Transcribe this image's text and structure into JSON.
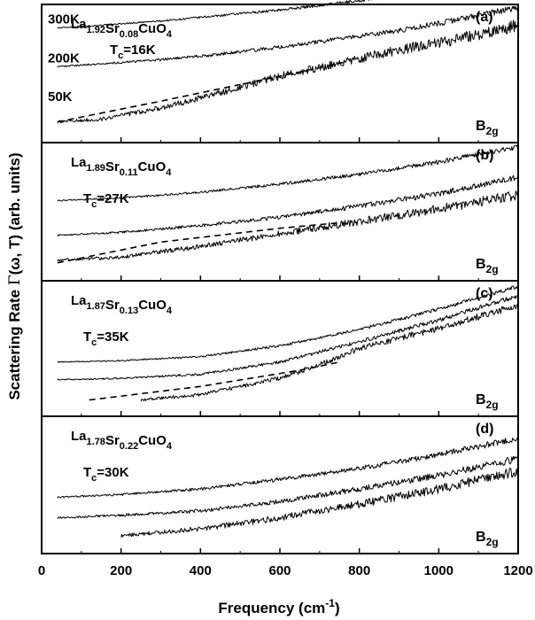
{
  "chart_data": {
    "type": "line",
    "ylabel_main": "Scattering Rate ",
    "ylabel_gamma": "Γ",
    "ylabel_rest": "(ω, T) (arb. units)",
    "xlabel_main": "Frequency (cm",
    "xlabel_sup": "-1",
    "xlabel_end": ")",
    "xlim": [
      0,
      1200
    ],
    "x_ticks": [
      {
        "value": 0,
        "label": "0"
      },
      {
        "value": 200,
        "label": "200"
      },
      {
        "value": 400,
        "label": "400"
      },
      {
        "value": 600,
        "label": "600"
      },
      {
        "value": 800,
        "label": "800"
      },
      {
        "value": 1000,
        "label": "1000"
      },
      {
        "value": 1200,
        "label": "1200"
      }
    ],
    "y_scale": "arbitrary units, curves vertically offset",
    "grid": false,
    "panels": [
      {
        "label": "(a)",
        "compound": {
          "a": "La",
          "a_sub": "1.92",
          "b": "Sr",
          "b_sub": "0.08",
          "c": "CuO",
          "c_sub": "4"
        },
        "tc": {
          "main": "T",
          "sub": "c",
          "value": "=16K"
        },
        "symmetry": {
          "main": "B",
          "sub": "2g"
        },
        "temperature_labels": [
          {
            "label": "300K",
            "y": 0.9
          },
          {
            "label": "200K",
            "y": 0.62
          },
          {
            "label": "50K",
            "y": 0.34
          }
        ],
        "series": [
          {
            "x": [
              40,
              150,
              300,
              450,
              600,
              750,
              900,
              1050,
              1200
            ],
            "y": [
              0.83,
              0.85,
              0.88,
              0.92,
              0.96,
              1.01,
              1.06,
              1.12,
              1.21
            ],
            "noise": 0.01
          },
          {
            "x": [
              40,
              150,
              300,
              450,
              600,
              750,
              900,
              1050,
              1200
            ],
            "y": [
              0.55,
              0.57,
              0.6,
              0.64,
              0.69,
              0.75,
              0.81,
              0.89,
              0.98
            ],
            "noise": 0.015
          },
          {
            "x": [
              40,
              150,
              300,
              450,
              600,
              750,
              900,
              1050,
              1200
            ],
            "y": [
              0.15,
              0.17,
              0.25,
              0.36,
              0.48,
              0.58,
              0.67,
              0.75,
              0.85
            ],
            "noise": 0.03
          }
        ],
        "dashed": {
          "x": [
            40,
            300,
            600,
            760
          ],
          "y": [
            0.15,
            0.3,
            0.48,
            0.58
          ]
        }
      },
      {
        "label": "(b)",
        "compound": {
          "a": "La",
          "a_sub": "1.89",
          "b": "Sr",
          "b_sub": "0.11",
          "c": "CuO",
          "c_sub": "4"
        },
        "tc": {
          "main": "T",
          "sub": "c",
          "value": "=27K"
        },
        "symmetry": {
          "main": "B",
          "sub": "2g"
        },
        "temperature_labels": [],
        "series": [
          {
            "x": [
              40,
              200,
              400,
              600,
              800,
              1000,
              1200
            ],
            "y": [
              0.58,
              0.6,
              0.64,
              0.7,
              0.77,
              0.86,
              0.97
            ],
            "noise": 0.012
          },
          {
            "x": [
              40,
              200,
              400,
              600,
              800,
              1000,
              1200
            ],
            "y": [
              0.33,
              0.35,
              0.4,
              0.46,
              0.54,
              0.63,
              0.75
            ],
            "noise": 0.015
          },
          {
            "x": [
              40,
              200,
              400,
              600,
              800,
              1000,
              1200
            ],
            "y": [
              0.15,
              0.17,
              0.25,
              0.34,
              0.43,
              0.52,
              0.62
            ],
            "noise": 0.025
          }
        ],
        "dashed": {
          "x": [
            40,
            300,
            600,
            750
          ],
          "y": [
            0.13,
            0.28,
            0.38,
            0.42
          ]
        }
      },
      {
        "label": "(c)",
        "compound": {
          "a": "La",
          "a_sub": "1.87",
          "b": "Sr",
          "b_sub": "0.13",
          "c": "CuO",
          "c_sub": "4"
        },
        "tc": {
          "main": "T",
          "sub": "c",
          "value": "=35K"
        },
        "symmetry": {
          "main": "B",
          "sub": "2g"
        },
        "temperature_labels": [],
        "series": [
          {
            "x": [
              40,
              200,
              400,
              600,
              800,
              1000,
              1200
            ],
            "y": [
              0.4,
              0.41,
              0.44,
              0.52,
              0.64,
              0.79,
              0.96
            ],
            "noise": 0.01
          },
          {
            "x": [
              40,
              200,
              400,
              600,
              800,
              1000,
              1200
            ],
            "y": [
              0.27,
              0.28,
              0.31,
              0.4,
              0.55,
              0.71,
              0.89
            ],
            "noise": 0.012
          },
          {
            "x": [
              250,
              400,
              600,
              700,
              800,
              1000,
              1200
            ],
            "y": [
              0.12,
              0.16,
              0.28,
              0.38,
              0.5,
              0.65,
              0.82
            ],
            "noise": 0.018
          }
        ],
        "dashed": {
          "x": [
            120,
            400,
            650,
            750
          ],
          "y": [
            0.12,
            0.22,
            0.34,
            0.4
          ]
        }
      },
      {
        "label": "(d)",
        "compound": {
          "a": "La",
          "a_sub": "1.78",
          "b": "Sr",
          "b_sub": "0.22",
          "c": "CuO",
          "c_sub": "4"
        },
        "tc": {
          "main": "T",
          "sub": "c",
          "value": "=30K"
        },
        "symmetry": {
          "main": "B",
          "sub": "2g"
        },
        "temperature_labels": [],
        "series": [
          {
            "x": [
              40,
              200,
              400,
              600,
              800,
              1000,
              1200
            ],
            "y": [
              0.41,
              0.43,
              0.47,
              0.54,
              0.62,
              0.72,
              0.84
            ],
            "noise": 0.015
          },
          {
            "x": [
              40,
              200,
              400,
              600,
              800,
              1000,
              1200
            ],
            "y": [
              0.26,
              0.28,
              0.31,
              0.38,
              0.47,
              0.57,
              0.69
            ],
            "noise": 0.018
          },
          {
            "x": [
              200,
              400,
              600,
              800,
              1000,
              1200
            ],
            "y": [
              0.13,
              0.18,
              0.26,
              0.36,
              0.47,
              0.6
            ],
            "noise": 0.025
          }
        ],
        "dashed": null
      }
    ]
  }
}
